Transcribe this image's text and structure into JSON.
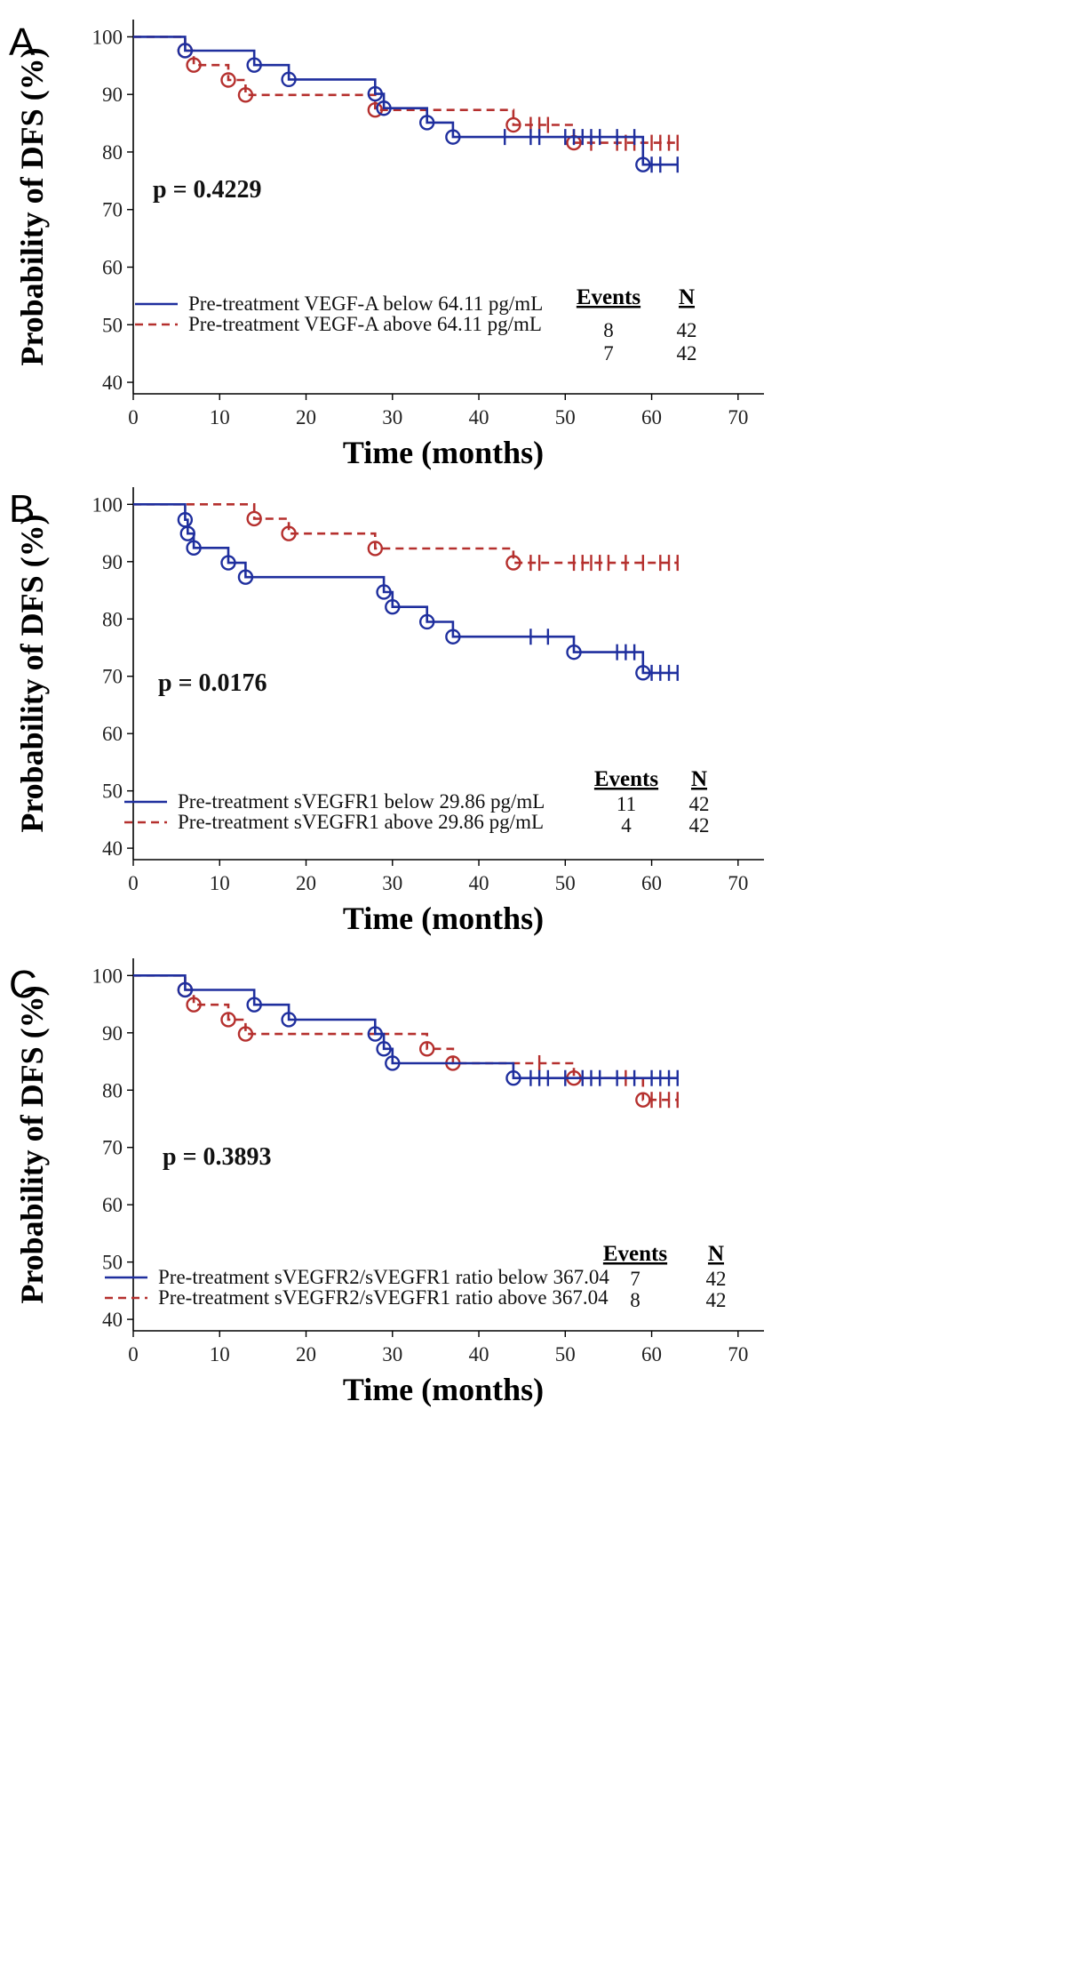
{
  "colors": {
    "below": "#1f2f9e",
    "above": "#b5302e",
    "axis": "#000000"
  },
  "chart_data": [
    {
      "type": "line",
      "panel": "A",
      "xlabel": "Time (months)",
      "ylabel": "Probability of DFS (%)",
      "xlim": [
        0,
        73
      ],
      "ylim": [
        38,
        103
      ],
      "xticks": [
        0,
        10,
        20,
        30,
        40,
        50,
        60,
        70
      ],
      "yticks": [
        40,
        50,
        60,
        70,
        80,
        90,
        100
      ],
      "p_value": "p = 0.4229",
      "table": {
        "events_header": "Events",
        "n_header": "N"
      },
      "series": [
        {
          "name": "Pre-treatment VEGF-A below 64.11 pg/mL",
          "key": "below",
          "style": "solid",
          "events": "8",
          "n": "42",
          "steps": [
            [
              0,
              100
            ],
            [
              6,
              100
            ],
            [
              6,
              97.6
            ],
            [
              14,
              97.6
            ],
            [
              14,
              95.1
            ],
            [
              18,
              95.1
            ],
            [
              18,
              92.6
            ],
            [
              28,
              92.6
            ],
            [
              28,
              90.1
            ],
            [
              29,
              90.1
            ],
            [
              29,
              87.6
            ],
            [
              34,
              87.6
            ],
            [
              34,
              85.1
            ],
            [
              37,
              85.1
            ],
            [
              37,
              82.6
            ],
            [
              59,
              82.6
            ],
            [
              59,
              77.8
            ],
            [
              63,
              77.8
            ]
          ],
          "event_points": [
            [
              6,
              97.6
            ],
            [
              14,
              95.1
            ],
            [
              18,
              92.6
            ],
            [
              28,
              90.1
            ],
            [
              29,
              87.6
            ],
            [
              34,
              85.1
            ],
            [
              37,
              82.6
            ],
            [
              59,
              77.8
            ]
          ],
          "censored": [
            [
              43,
              82.6
            ],
            [
              46,
              82.6
            ],
            [
              47,
              82.6
            ],
            [
              50,
              82.6
            ],
            [
              51,
              82.6
            ],
            [
              52,
              82.6
            ],
            [
              53,
              82.6
            ],
            [
              54,
              82.6
            ],
            [
              56,
              82.6
            ],
            [
              58,
              82.6
            ],
            [
              60,
              77.8
            ],
            [
              61,
              77.8
            ],
            [
              63,
              77.8
            ]
          ]
        },
        {
          "name": "Pre-treatment VEGF-A above 64.11 pg/mL",
          "key": "above",
          "style": "dashed",
          "events": "7",
          "n": "42",
          "steps": [
            [
              0,
              100
            ],
            [
              6,
              100
            ],
            [
              6,
              97.6
            ],
            [
              7,
              97.6
            ],
            [
              7,
              95.1
            ],
            [
              11,
              95.1
            ],
            [
              11,
              92.5
            ],
            [
              13,
              92.5
            ],
            [
              13,
              89.9
            ],
            [
              28,
              89.9
            ],
            [
              28,
              87.3
            ],
            [
              44,
              87.3
            ],
            [
              44,
              84.7
            ],
            [
              51,
              84.7
            ],
            [
              51,
              81.6
            ],
            [
              63,
              81.6
            ]
          ],
          "event_points": [
            [
              6,
              97.6
            ],
            [
              7,
              95.1
            ],
            [
              11,
              92.5
            ],
            [
              13,
              89.9
            ],
            [
              28,
              87.3
            ],
            [
              44,
              84.7
            ],
            [
              51,
              81.6
            ]
          ],
          "censored": [
            [
              46,
              84.7
            ],
            [
              47,
              84.7
            ],
            [
              48,
              84.7
            ],
            [
              53,
              81.6
            ],
            [
              56,
              81.6
            ],
            [
              57,
              81.6
            ],
            [
              58,
              81.6
            ],
            [
              60,
              81.6
            ],
            [
              61,
              81.6
            ],
            [
              62,
              81.6
            ],
            [
              63,
              81.6
            ]
          ]
        }
      ]
    },
    {
      "type": "line",
      "panel": "B",
      "xlabel": "Time (months)",
      "ylabel": "Probability of DFS (%)",
      "xlim": [
        0,
        73
      ],
      "ylim": [
        38,
        103
      ],
      "xticks": [
        0,
        10,
        20,
        30,
        40,
        50,
        60,
        70
      ],
      "yticks": [
        40,
        50,
        60,
        70,
        80,
        90,
        100
      ],
      "p_value": "p = 0.0176",
      "table": {
        "events_header": "Events",
        "n_header": "N"
      },
      "series": [
        {
          "name": "Pre-treatment sVEGFR1 below 29.86 pg/mL",
          "key": "below",
          "style": "solid",
          "events": "11",
          "n": "42",
          "steps": [
            [
              0,
              100
            ],
            [
              6,
              100
            ],
            [
              6,
              97.3
            ],
            [
              6.3,
              97.3
            ],
            [
              6.3,
              94.9
            ],
            [
              7,
              94.9
            ],
            [
              7,
              92.4
            ],
            [
              11,
              92.4
            ],
            [
              11,
              89.8
            ],
            [
              13,
              89.8
            ],
            [
              13,
              87.3
            ],
            [
              29,
              87.3
            ],
            [
              29,
              84.7
            ],
            [
              30,
              84.7
            ],
            [
              30,
              82.1
            ],
            [
              34,
              82.1
            ],
            [
              34,
              79.5
            ],
            [
              37,
              79.5
            ],
            [
              37,
              76.9
            ],
            [
              51,
              76.9
            ],
            [
              51,
              74.2
            ],
            [
              59,
              74.2
            ],
            [
              59,
              70.6
            ],
            [
              63,
              70.6
            ]
          ],
          "event_points": [
            [
              6,
              97.3
            ],
            [
              6.3,
              94.9
            ],
            [
              7,
              92.4
            ],
            [
              11,
              89.8
            ],
            [
              13,
              87.3
            ],
            [
              29,
              84.7
            ],
            [
              30,
              82.1
            ],
            [
              34,
              79.5
            ],
            [
              37,
              76.9
            ],
            [
              51,
              74.2
            ],
            [
              59,
              70.6
            ]
          ],
          "censored": [
            [
              46,
              76.9
            ],
            [
              48,
              76.9
            ],
            [
              56,
              74.2
            ],
            [
              57,
              74.2
            ],
            [
              58,
              74.2
            ],
            [
              60,
              70.6
            ],
            [
              61,
              70.6
            ],
            [
              62,
              70.6
            ],
            [
              63,
              70.6
            ]
          ]
        },
        {
          "name": "Pre-treatment sVEGFR1 above 29.86 pg/mL",
          "key": "above",
          "style": "dashed",
          "events": "4",
          "n": "42",
          "steps": [
            [
              0,
              100
            ],
            [
              14,
              100
            ],
            [
              14,
              97.5
            ],
            [
              18,
              97.5
            ],
            [
              18,
              94.9
            ],
            [
              28,
              94.9
            ],
            [
              28,
              92.3
            ],
            [
              44,
              92.3
            ],
            [
              44,
              89.8
            ],
            [
              63,
              89.8
            ]
          ],
          "event_points": [
            [
              14,
              97.5
            ],
            [
              18,
              94.9
            ],
            [
              28,
              92.3
            ],
            [
              44,
              89.8
            ]
          ],
          "censored": [
            [
              46,
              89.8
            ],
            [
              47,
              89.8
            ],
            [
              51,
              89.8
            ],
            [
              52,
              89.8
            ],
            [
              53,
              89.8
            ],
            [
              54,
              89.8
            ],
            [
              55,
              89.8
            ],
            [
              57,
              89.8
            ],
            [
              59,
              89.8
            ],
            [
              61,
              89.8
            ],
            [
              62,
              89.8
            ],
            [
              63,
              89.8
            ]
          ]
        }
      ]
    },
    {
      "type": "line",
      "panel": "C",
      "xlabel": "Time (months)",
      "ylabel": "Probability of DFS (%)",
      "xlim": [
        0,
        73
      ],
      "ylim": [
        38,
        103
      ],
      "xticks": [
        0,
        10,
        20,
        30,
        40,
        50,
        60,
        70
      ],
      "yticks": [
        40,
        50,
        60,
        70,
        80,
        90,
        100
      ],
      "p_value": "p = 0.3893",
      "table": {
        "events_header": "Events",
        "n_header": "N"
      },
      "series": [
        {
          "name": "Pre-treatment sVEGFR2/sVEGFR1 ratio below 367.04",
          "key": "below",
          "style": "solid",
          "events": "7",
          "n": "42",
          "steps": [
            [
              0,
              100
            ],
            [
              6,
              100
            ],
            [
              6,
              97.5
            ],
            [
              14,
              97.5
            ],
            [
              14,
              94.9
            ],
            [
              18,
              94.9
            ],
            [
              18,
              92.3
            ],
            [
              28,
              92.3
            ],
            [
              28,
              89.8
            ],
            [
              29,
              89.8
            ],
            [
              29,
              87.2
            ],
            [
              30,
              87.2
            ],
            [
              30,
              84.7
            ],
            [
              44,
              84.7
            ],
            [
              44,
              82.1
            ],
            [
              63,
              82.1
            ]
          ],
          "event_points": [
            [
              6,
              97.5
            ],
            [
              14,
              94.9
            ],
            [
              18,
              92.3
            ],
            [
              28,
              89.8
            ],
            [
              29,
              87.2
            ],
            [
              30,
              84.7
            ],
            [
              44,
              82.1
            ]
          ],
          "censored": [
            [
              46,
              82.1
            ],
            [
              47,
              82.1
            ],
            [
              48,
              82.1
            ],
            [
              50,
              82.1
            ],
            [
              52,
              82.1
            ],
            [
              53,
              82.1
            ],
            [
              54,
              82.1
            ],
            [
              56,
              82.1
            ],
            [
              58,
              82.1
            ],
            [
              60,
              82.1
            ],
            [
              61,
              82.1
            ],
            [
              62,
              82.1
            ],
            [
              63,
              82.1
            ]
          ]
        },
        {
          "name": "Pre-treatment sVEGFR2/sVEGFR1 ratio above 367.04",
          "key": "above",
          "style": "dashed",
          "events": "8",
          "n": "42",
          "steps": [
            [
              0,
              100
            ],
            [
              6,
              100
            ],
            [
              6,
              97.5
            ],
            [
              7,
              97.5
            ],
            [
              7,
              94.9
            ],
            [
              11,
              94.9
            ],
            [
              11,
              92.3
            ],
            [
              13,
              92.3
            ],
            [
              13,
              89.8
            ],
            [
              34,
              89.8
            ],
            [
              34,
              87.2
            ],
            [
              37,
              87.2
            ],
            [
              37,
              84.7
            ],
            [
              51,
              84.7
            ],
            [
              51,
              82.1
            ],
            [
              59,
              82.1
            ],
            [
              59,
              78.3
            ],
            [
              63,
              78.3
            ]
          ],
          "event_points": [
            [
              6,
              97.5
            ],
            [
              7,
              94.9
            ],
            [
              11,
              92.3
            ],
            [
              13,
              89.8
            ],
            [
              34,
              87.2
            ],
            [
              37,
              84.7
            ],
            [
              51,
              82.1
            ],
            [
              59,
              78.3
            ]
          ],
          "censored": [
            [
              47,
              84.7
            ],
            [
              57,
              82.1
            ],
            [
              60,
              78.3
            ],
            [
              61,
              78.3
            ],
            [
              62,
              78.3
            ],
            [
              63,
              78.3
            ]
          ]
        }
      ]
    }
  ]
}
